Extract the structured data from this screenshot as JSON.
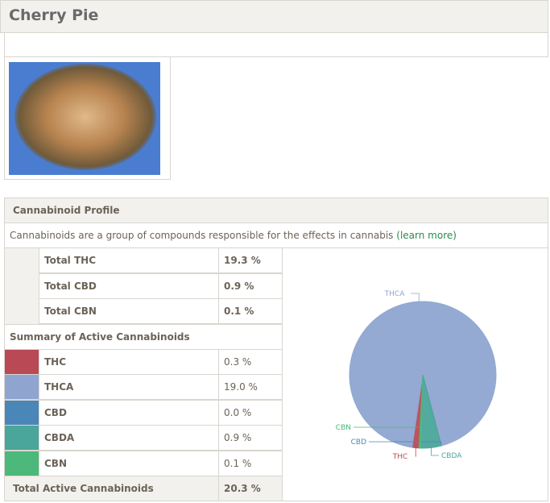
{
  "header": {
    "title": "Cherry Pie"
  },
  "profile": {
    "title": "Cannabinoid Profile",
    "description": "Cannabinoids are a group of compounds responsible for the effects in cannabis",
    "link": "(learn more)",
    "totals": [
      [
        "Total THC",
        "19.3 %"
      ],
      [
        "Total CBD",
        "0.9 %"
      ],
      [
        "Total CBN",
        "0.1 %"
      ]
    ],
    "summary_title": "Summary of Active Cannabinoids",
    "total_active": [
      "Total Active Cannabinoids",
      "20.3 %"
    ]
  },
  "chart_data": {
    "type": "pie",
    "categories": [
      "THC",
      "THCA",
      "CBD",
      "CBDA",
      "CBN"
    ],
    "values": [
      0.3,
      19.0,
      0.0,
      0.9,
      0.1
    ],
    "value_labels": [
      "0.3 %",
      "19.0 %",
      "0.0 %",
      "0.9 %",
      "0.1 %"
    ],
    "colors": [
      "#b94a55",
      "#8fa5d0",
      "#4a86b8",
      "#4aa59a",
      "#4cb87a"
    ]
  }
}
